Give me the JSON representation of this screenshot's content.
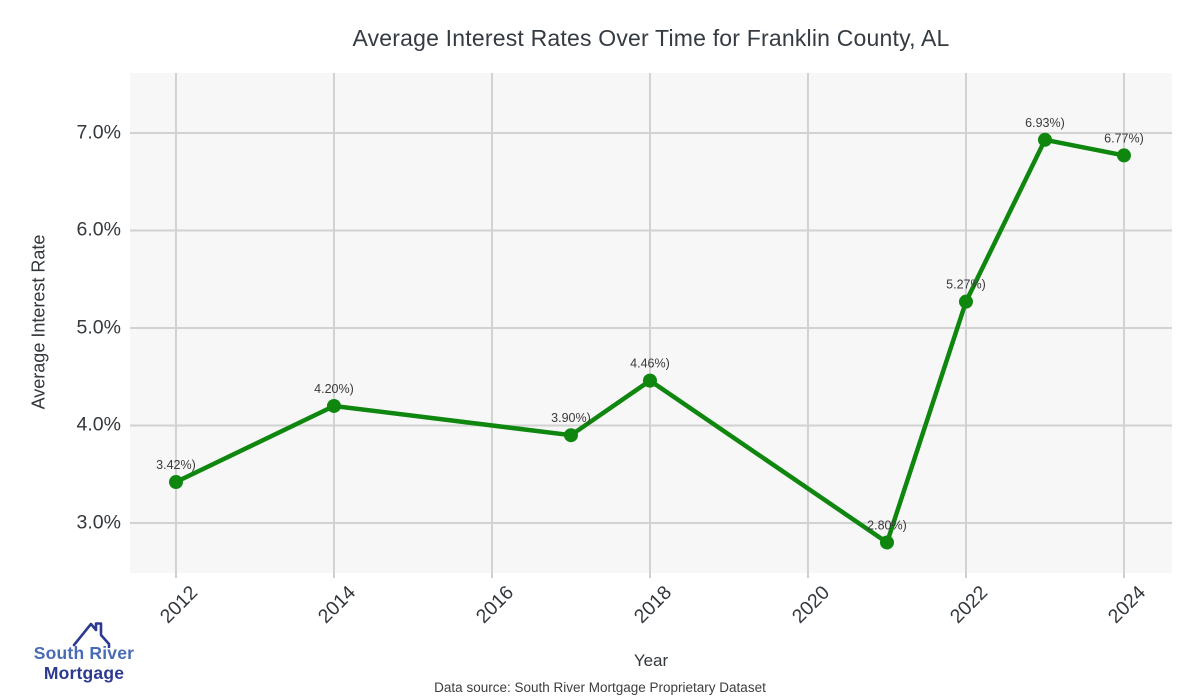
{
  "chart_data": {
    "type": "line",
    "title": "Average Interest Rates Over Time for Franklin County, AL",
    "xlabel": "Year",
    "ylabel": "Average Interest Rate",
    "x": [
      2012,
      2014,
      2017,
      2018,
      2021,
      2022,
      2023,
      2024
    ],
    "values": [
      3.42,
      4.2,
      3.9,
      4.46,
      2.8,
      5.27,
      6.93,
      6.77
    ],
    "point_labels": [
      "3.42%)",
      "4.20%)",
      "3.90%)",
      "4.46%)",
      "2.80%)",
      "5.27%)",
      "6.93%)",
      "6.77%)"
    ],
    "xticks": [
      2012,
      2014,
      2016,
      2018,
      2020,
      2022,
      2024
    ],
    "xtick_labels": [
      "2012",
      "2014",
      "2016",
      "2018",
      "2020",
      "2022",
      "2024"
    ],
    "yticks": [
      3,
      4,
      5,
      6,
      7
    ],
    "ytick_labels": [
      "3.0%",
      "4.0%",
      "5.0%",
      "6.0%",
      "7.0%"
    ],
    "xlim": [
      2011.418,
      2024.608
    ],
    "ylim": [
      2.487,
      7.615
    ],
    "grid": true,
    "legend": "none",
    "line_color": "#0f870f",
    "marker_color": "#0f870f",
    "marker_radius": 7,
    "line_width": 4.5
  },
  "footer": {
    "source_text": "Data source: South River Mortgage Proprietary Dataset"
  },
  "logo": {
    "line1": "South River",
    "line2": "Mortgage",
    "text1_color": "#4a6cb5",
    "text2_color": "#2c3a90",
    "icon_color": "#2c3a90"
  },
  "colors": {
    "plot_bg": "#f7f7f7",
    "grid": "#d2d2d2",
    "tick": "#cfcfcf",
    "title_text": "#343b42",
    "axis_text": "#33383d",
    "label_text": "#3a3a3a"
  }
}
